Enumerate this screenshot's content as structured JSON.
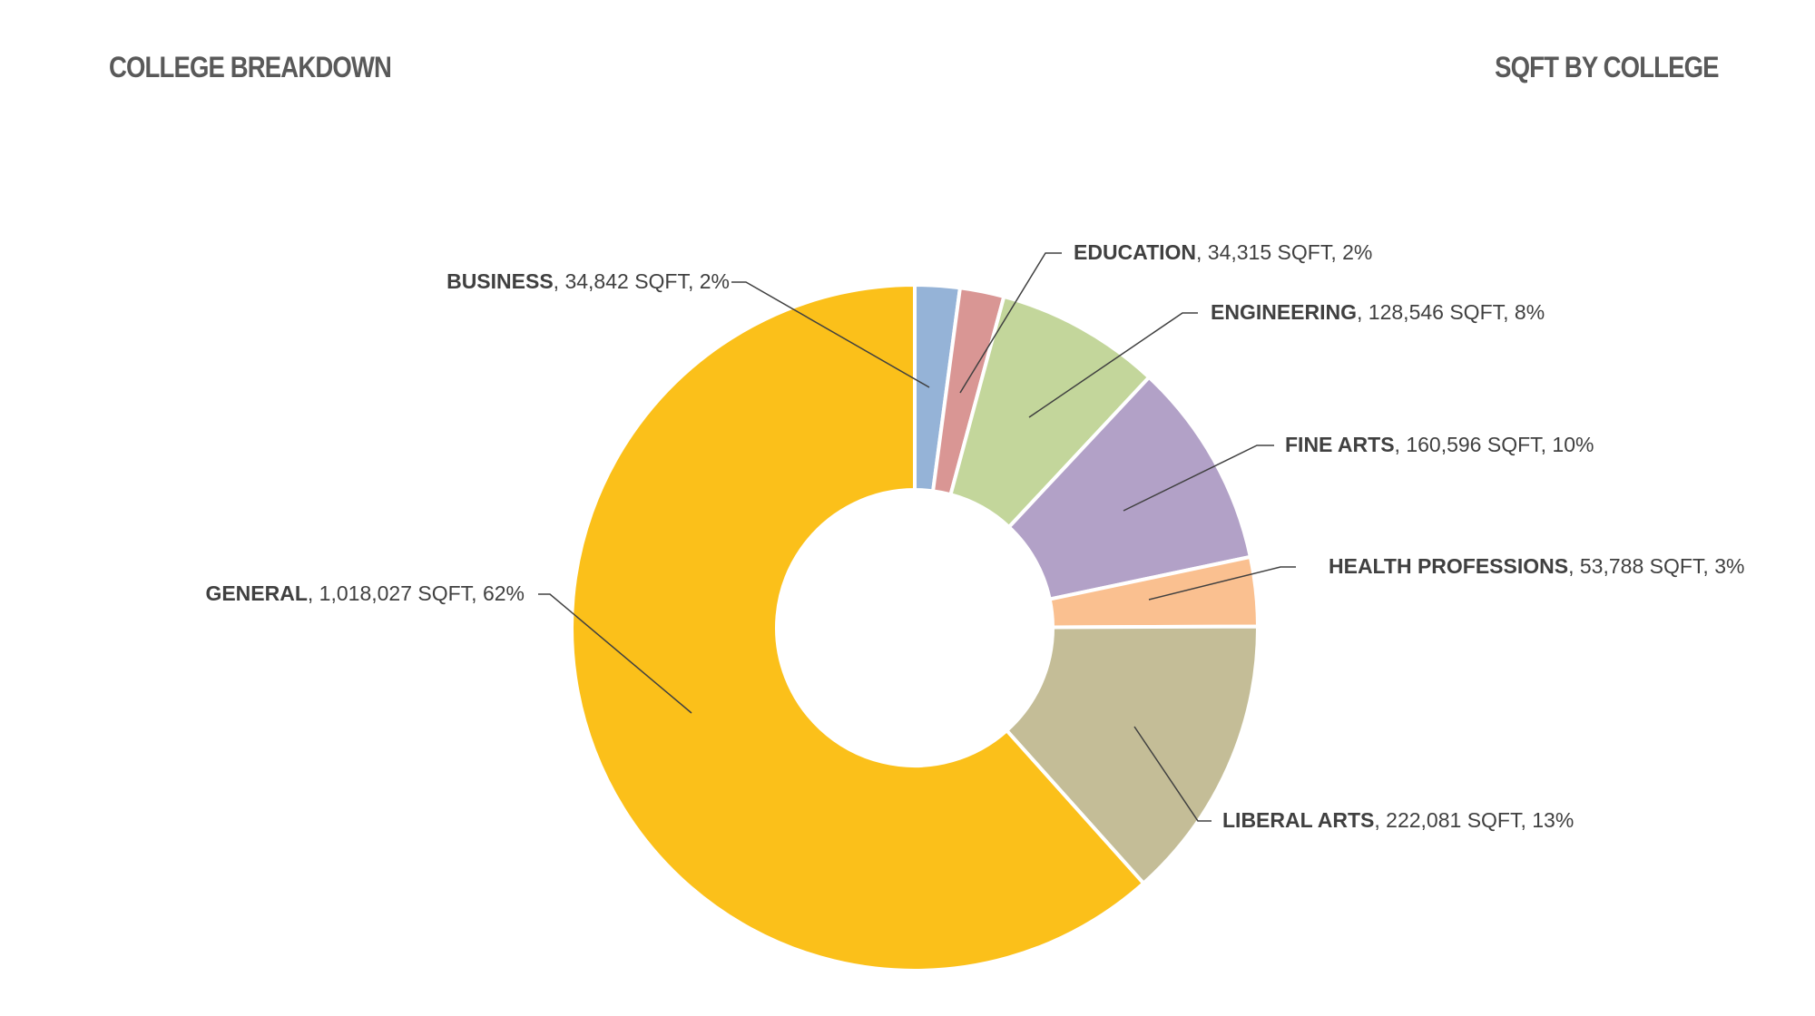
{
  "header": {
    "left_title": "COLLEGE BREAKDOWN",
    "right_title": "SQFT BY COLLEGE"
  },
  "chart_data": {
    "type": "pie",
    "variant": "donut",
    "unit": "SQFT",
    "slices": [
      {
        "name": "BUSINESS",
        "value": 34842,
        "value_label": "34,842 SQFT",
        "percent_label": "2%",
        "color": "#95B3D7"
      },
      {
        "name": "EDUCATION",
        "value": 34315,
        "value_label": "34,315 SQFT",
        "percent_label": "2%",
        "color": "#D99694"
      },
      {
        "name": "ENGINEERING",
        "value": 128546,
        "value_label": "128,546 SQFT",
        "percent_label": "8%",
        "color": "#C3D69B"
      },
      {
        "name": "FINE ARTS",
        "value": 160596,
        "value_label": "160,596 SQFT",
        "percent_label": "10%",
        "color": "#B2A1C7"
      },
      {
        "name": "HEALTH PROFESSIONS",
        "value": 53788,
        "value_label": "53,788 SQFT",
        "percent_label": "3%",
        "color": "#FAC090"
      },
      {
        "name": "LIBERAL ARTS",
        "value": 222081,
        "value_label": "222,081 SQFT",
        "percent_label": "13%",
        "color": "#C4BD97"
      },
      {
        "name": "GENERAL",
        "value": 1018027,
        "value_label": "1,018,027 SQFT",
        "percent_label": "62%",
        "color": "#FBC01A"
      }
    ]
  }
}
